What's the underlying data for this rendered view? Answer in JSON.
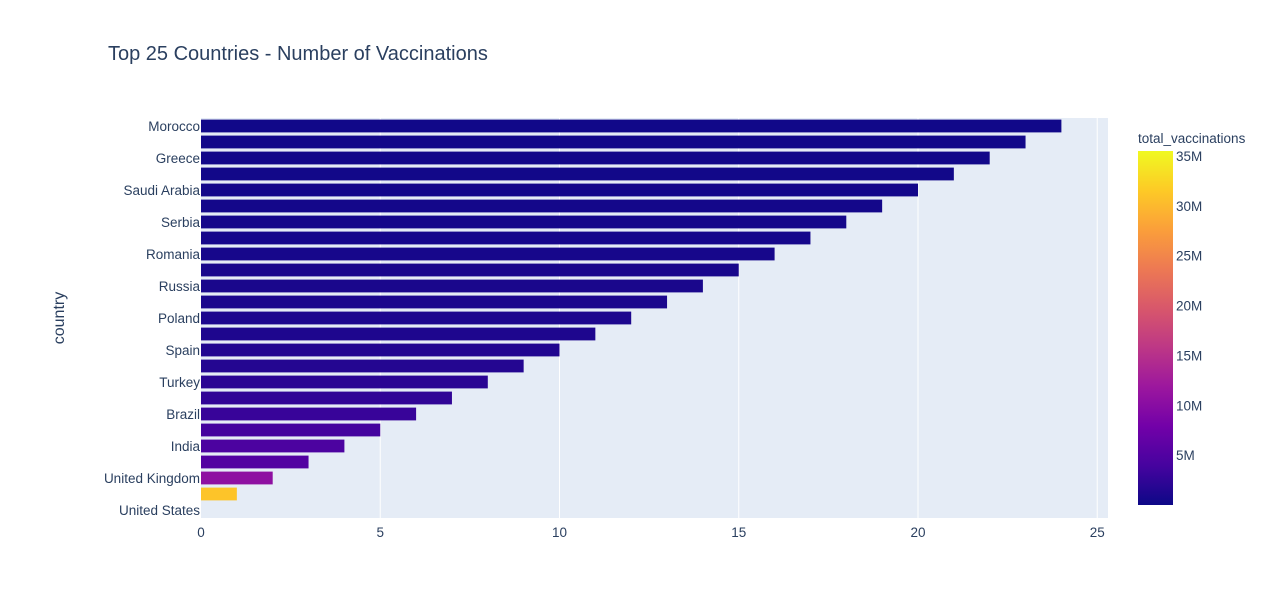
{
  "chart_data": {
    "type": "bar",
    "orientation": "horizontal",
    "title": "Top 25 Countries - Number of Vaccinations",
    "xlabel": "",
    "ylabel": "country",
    "xlim": [
      0,
      25.3
    ],
    "xticks": [
      0,
      5,
      10,
      15,
      20,
      25
    ],
    "grid": true,
    "colorbar": {
      "title": "total_vaccinations",
      "min": 0,
      "max": 35500000,
      "ticks": [
        {
          "value": 5000000,
          "label": "5M"
        },
        {
          "value": 10000000,
          "label": "10M"
        },
        {
          "value": 15000000,
          "label": "15M"
        },
        {
          "value": 20000000,
          "label": "20M"
        },
        {
          "value": 25000000,
          "label": "25M"
        },
        {
          "value": 30000000,
          "label": "30M"
        },
        {
          "value": 35000000,
          "label": "35M"
        }
      ],
      "colorscale": [
        "#0d0887",
        "#46039f",
        "#7201a8",
        "#9c179e",
        "#bd3786",
        "#d8576b",
        "#ed7953",
        "#fb9f3a",
        "#fdca26",
        "#f0f921"
      ]
    },
    "bars": [
      {
        "country": "Morocco",
        "value": 24,
        "total_vaccinations": 300000,
        "label_shown": true
      },
      {
        "country": "",
        "value": 23,
        "total_vaccinations": 320000,
        "label_shown": false
      },
      {
        "country": "Greece",
        "value": 22,
        "total_vaccinations": 350000,
        "label_shown": true
      },
      {
        "country": "",
        "value": 21,
        "total_vaccinations": 380000,
        "label_shown": false
      },
      {
        "country": "Saudi Arabia",
        "value": 20,
        "total_vaccinations": 420000,
        "label_shown": true
      },
      {
        "country": "",
        "value": 19,
        "total_vaccinations": 480000,
        "label_shown": false
      },
      {
        "country": "Serbia",
        "value": 18,
        "total_vaccinations": 550000,
        "label_shown": true
      },
      {
        "country": "",
        "value": 17,
        "total_vaccinations": 620000,
        "label_shown": false
      },
      {
        "country": "Romania",
        "value": 16,
        "total_vaccinations": 700000,
        "label_shown": true
      },
      {
        "country": "",
        "value": 15,
        "total_vaccinations": 800000,
        "label_shown": false
      },
      {
        "country": "Russia",
        "value": 14,
        "total_vaccinations": 900000,
        "label_shown": true
      },
      {
        "country": "",
        "value": 13,
        "total_vaccinations": 1000000,
        "label_shown": false
      },
      {
        "country": "Poland",
        "value": 12,
        "total_vaccinations": 1100000,
        "label_shown": true
      },
      {
        "country": "",
        "value": 11,
        "total_vaccinations": 1200000,
        "label_shown": false
      },
      {
        "country": "Spain",
        "value": 10,
        "total_vaccinations": 1400000,
        "label_shown": true
      },
      {
        "country": "",
        "value": 9,
        "total_vaccinations": 1600000,
        "label_shown": false
      },
      {
        "country": "Turkey",
        "value": 8,
        "total_vaccinations": 2000000,
        "label_shown": true
      },
      {
        "country": "",
        "value": 7,
        "total_vaccinations": 2500000,
        "label_shown": false
      },
      {
        "country": "Brazil",
        "value": 6,
        "total_vaccinations": 3000000,
        "label_shown": true
      },
      {
        "country": "",
        "value": 5,
        "total_vaccinations": 3800000,
        "label_shown": false
      },
      {
        "country": "India",
        "value": 4,
        "total_vaccinations": 4500000,
        "label_shown": true
      },
      {
        "country": "",
        "value": 3,
        "total_vaccinations": 5000000,
        "label_shown": false
      },
      {
        "country": "United Kingdom",
        "value": 2,
        "total_vaccinations": 10500000,
        "label_shown": true
      },
      {
        "country": "",
        "value": 1,
        "total_vaccinations": 31000000,
        "label_shown": false
      },
      {
        "country": "United States",
        "value": 0,
        "total_vaccinations": 35500000,
        "label_shown": true
      }
    ]
  }
}
